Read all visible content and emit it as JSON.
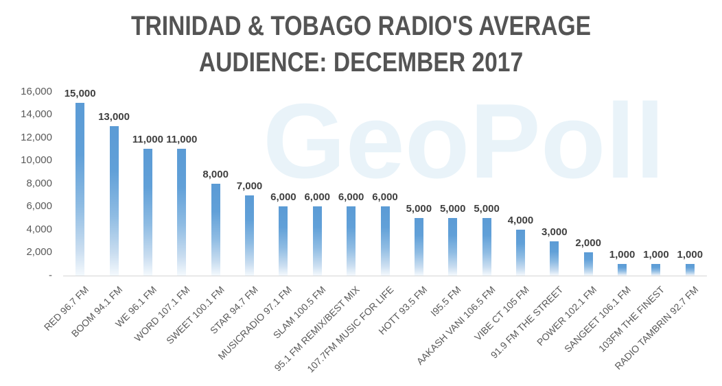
{
  "title": {
    "line1": "TRINIDAD & TOBAGO RADIO'S AVERAGE",
    "line2": "AUDIENCE: DECEMBER 2017"
  },
  "watermark": {
    "text": "GeoPoll"
  },
  "colors": {
    "bar_top": "#5B9BD5",
    "bar_bottom": "#F4F9FD",
    "title_text": "#545454",
    "axis_text": "#595959",
    "value_label_text": "#3F3F3F",
    "axis_line": "#D5D5D5",
    "watermark_text": "#E9F3F9"
  },
  "chart_data": {
    "type": "bar",
    "title": "TRINIDAD & TOBAGO RADIO'S AVERAGE AUDIENCE: DECEMBER 2017",
    "xlabel": "",
    "ylabel": "",
    "ylim": [
      0,
      16000
    ],
    "grid": false,
    "legend": false,
    "categories": [
      "RED 96.7 FM",
      "BOOM 94.1 FM",
      "WE 96.1 FM",
      "WORD 107.1 FM",
      "SWEET 100.1 FM",
      "STAR 94.7 FM",
      "MUSICRADIO 97.1 FM",
      "SLAM 100.5 FM",
      "95.1 FM REMIX/BEST MIX",
      "107.7FM MUSIC FOR LIFE",
      "HOTT 93.5 FM",
      "I95.5 FM",
      "AAKASH VANI 106.5 FM",
      "VIBE CT 105 FM",
      "91.9 FM THE STREET",
      "POWER 102.1 FM",
      "SANGEET 106.1 FM",
      "103FM THE FINEST",
      "RADIO TAMBRIN 92.7 FM"
    ],
    "values": [
      15000,
      13000,
      11000,
      11000,
      8000,
      7000,
      6000,
      6000,
      6000,
      6000,
      5000,
      5000,
      5000,
      4000,
      3000,
      2000,
      1000,
      1000,
      1000
    ],
    "data_labels": [
      "15,000",
      "13,000",
      "11,000",
      "11,000",
      "8,000",
      "7,000",
      "6,000",
      "6,000",
      "6,000",
      "6,000",
      "5,000",
      "5,000",
      "5,000",
      "4,000",
      "3,000",
      "2,000",
      "1,000",
      "1,000",
      "1,000"
    ],
    "y_ticks": [
      {
        "value": 16000,
        "label": "16,000"
      },
      {
        "value": 14000,
        "label": "14,000"
      },
      {
        "value": 12000,
        "label": "12,000"
      },
      {
        "value": 10000,
        "label": "10,000"
      },
      {
        "value": 8000,
        "label": "8,000"
      },
      {
        "value": 6000,
        "label": "6,000"
      },
      {
        "value": 4000,
        "label": "4,000"
      },
      {
        "value": 2000,
        "label": "2,000"
      },
      {
        "value": 0,
        "label": "-"
      }
    ]
  }
}
